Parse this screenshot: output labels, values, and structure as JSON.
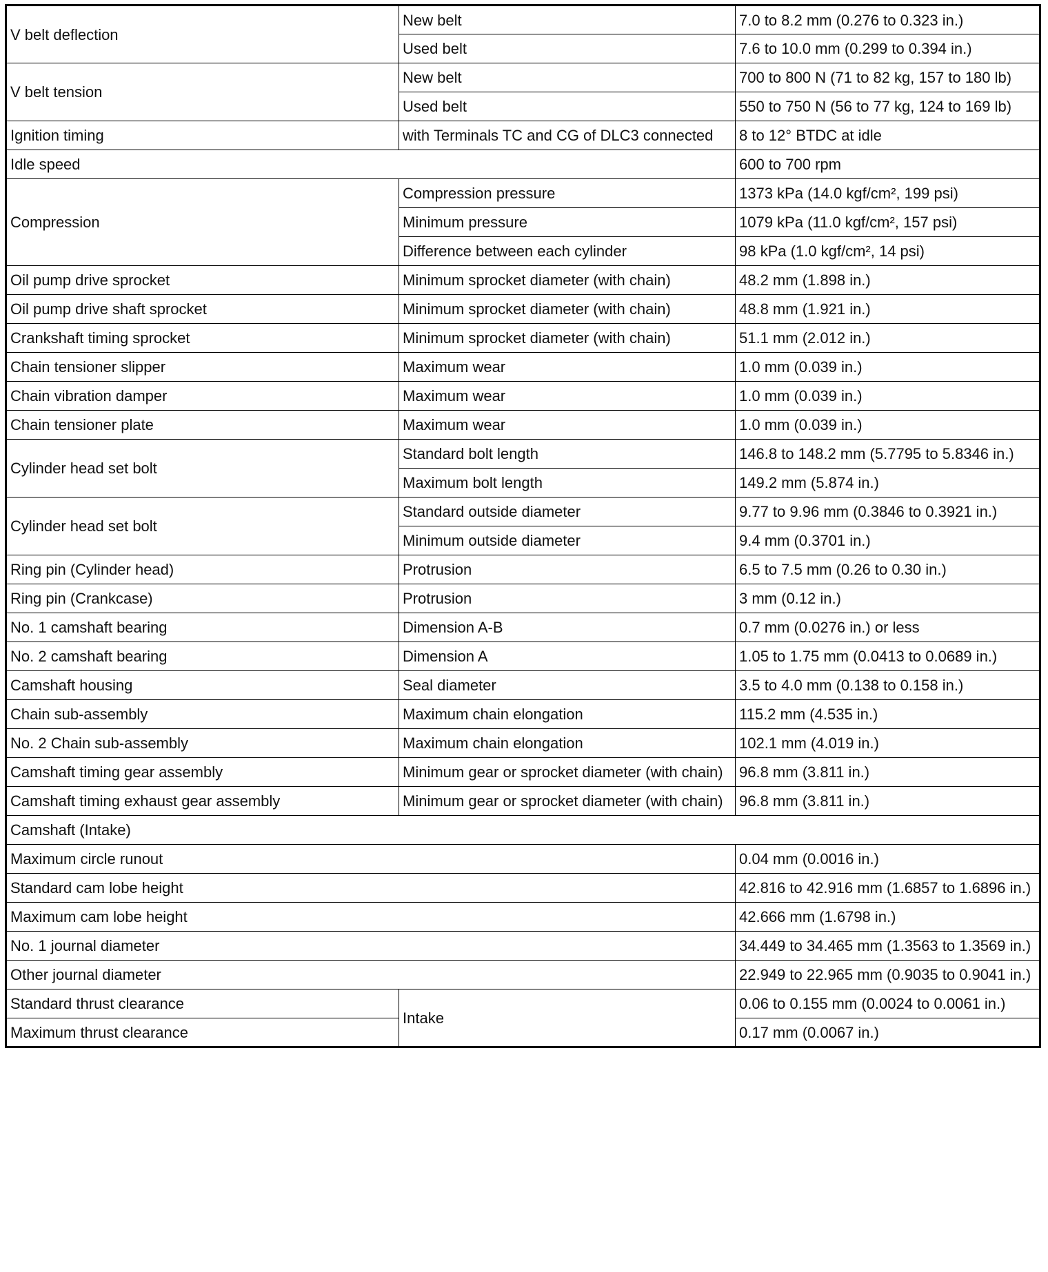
{
  "table": {
    "rows": [
      {
        "item": "V belt deflection",
        "specs": [
          {
            "condition": "New belt",
            "value": "7.0 to 8.2 mm (0.276 to 0.323 in.)"
          },
          {
            "condition": "Used belt",
            "value": "7.6 to 10.0 mm (0.299 to 0.394 in.)"
          }
        ]
      },
      {
        "item": "V belt tension",
        "specs": [
          {
            "condition": "New belt",
            "value": "700 to 800 N (71 to 82 kg, 157 to 180 lb)"
          },
          {
            "condition": "Used belt",
            "value": "550 to 750 N (56 to 77 kg, 124 to 169 lb)"
          }
        ]
      },
      {
        "item": "Ignition timing",
        "specs": [
          {
            "condition": "with Terminals TC and CG of DLC3 connected",
            "value": "8 to 12° BTDC at idle"
          }
        ]
      },
      {
        "item": "Idle speed",
        "value": "600 to 700 rpm"
      },
      {
        "item": "Compression",
        "specs": [
          {
            "condition": "Compression pressure",
            "value": "1373 kPa (14.0 kgf/cm², 199 psi)"
          },
          {
            "condition": "Minimum pressure",
            "value": "1079 kPa (11.0 kgf/cm², 157 psi)"
          },
          {
            "condition": "Difference between each cylinder",
            "value": "98 kPa (1.0 kgf/cm², 14 psi)"
          }
        ]
      },
      {
        "item": "Oil pump drive sprocket",
        "specs": [
          {
            "condition": "Minimum sprocket diameter (with chain)",
            "value": "48.2 mm (1.898 in.)"
          }
        ]
      },
      {
        "item": "Oil pump drive shaft sprocket",
        "specs": [
          {
            "condition": "Minimum sprocket diameter (with chain)",
            "value": "48.8 mm (1.921 in.)"
          }
        ]
      },
      {
        "item": "Crankshaft timing sprocket",
        "specs": [
          {
            "condition": "Minimum sprocket diameter (with chain)",
            "value": "51.1 mm (2.012 in.)"
          }
        ]
      },
      {
        "item": "Chain tensioner slipper",
        "specs": [
          {
            "condition": "Maximum wear",
            "value": "1.0 mm (0.039 in.)"
          }
        ]
      },
      {
        "item": "Chain vibration damper",
        "specs": [
          {
            "condition": "Maximum wear",
            "value": "1.0 mm (0.039 in.)"
          }
        ]
      },
      {
        "item": "Chain tensioner plate",
        "specs": [
          {
            "condition": "Maximum wear",
            "value": "1.0 mm (0.039 in.)"
          }
        ]
      },
      {
        "item": "Cylinder head set bolt",
        "specs": [
          {
            "condition": "Standard bolt length",
            "value": "146.8 to 148.2 mm (5.7795 to 5.8346 in.)"
          },
          {
            "condition": "Maximum bolt length",
            "value": "149.2 mm (5.874 in.)"
          }
        ]
      },
      {
        "item": "Cylinder head set bolt",
        "specs": [
          {
            "condition": "Standard outside diameter",
            "value": "9.77 to 9.96 mm (0.3846 to 0.3921 in.)"
          },
          {
            "condition": "Minimum outside diameter",
            "value": "9.4 mm (0.3701 in.)"
          }
        ]
      },
      {
        "item": "Ring pin (Cylinder head)",
        "specs": [
          {
            "condition": "Protrusion",
            "value": "6.5 to 7.5 mm (0.26 to 0.30 in.)"
          }
        ]
      },
      {
        "item": "Ring pin (Crankcase)",
        "specs": [
          {
            "condition": "Protrusion",
            "value": "3 mm (0.12 in.)"
          }
        ]
      },
      {
        "item": "No. 1 camshaft bearing",
        "specs": [
          {
            "condition": "Dimension A-B",
            "value": "0.7 mm (0.0276 in.) or less"
          }
        ]
      },
      {
        "item": "No. 2 camshaft bearing",
        "specs": [
          {
            "condition": "Dimension A",
            "value": "1.05 to 1.75 mm (0.0413 to 0.0689 in.)"
          }
        ]
      },
      {
        "item": "Camshaft housing",
        "specs": [
          {
            "condition": "Seal diameter",
            "value": "3.5 to 4.0 mm (0.138 to 0.158 in.)"
          }
        ]
      },
      {
        "item": "Chain sub-assembly",
        "specs": [
          {
            "condition": "Maximum chain elongation",
            "value": "115.2 mm (4.535 in.)"
          }
        ]
      },
      {
        "item": "No. 2 Chain sub-assembly",
        "specs": [
          {
            "condition": "Maximum chain elongation",
            "value": "102.1 mm (4.019 in.)"
          }
        ]
      },
      {
        "item": "Camshaft timing gear assembly",
        "specs": [
          {
            "condition": "Minimum gear or sprocket diameter (with chain)",
            "value": "96.8 mm (3.811 in.)"
          }
        ]
      },
      {
        "item": "Camshaft timing exhaust gear assembly",
        "specs": [
          {
            "condition": "Minimum gear or sprocket diameter (with chain)",
            "value": "96.8 mm (3.811 in.)"
          }
        ]
      },
      {
        "section": "Camshaft (Intake)"
      },
      {
        "item": "Maximum circle runout",
        "value": "0.04 mm (0.0016 in.)"
      },
      {
        "item": "Standard cam lobe height",
        "value": "42.816 to 42.916 mm (1.6857 to 1.6896 in.)"
      },
      {
        "item": "Maximum cam lobe height",
        "value": "42.666 mm (1.6798 in.)"
      },
      {
        "item": "No. 1 journal diameter",
        "value": "34.449 to 34.465 mm (1.3563 to 1.3569 in.)"
      },
      {
        "item": "Other journal diameter",
        "value": "22.949 to 22.965 mm (0.9035 to 0.9041 in.)"
      },
      {
        "condition": "Intake",
        "items": [
          {
            "item": "Standard thrust clearance",
            "value": "0.06 to 0.155 mm (0.0024 to 0.0061 in.)"
          },
          {
            "item": "Maximum thrust clearance",
            "value": "0.17 mm (0.0067 in.)"
          }
        ]
      }
    ]
  }
}
